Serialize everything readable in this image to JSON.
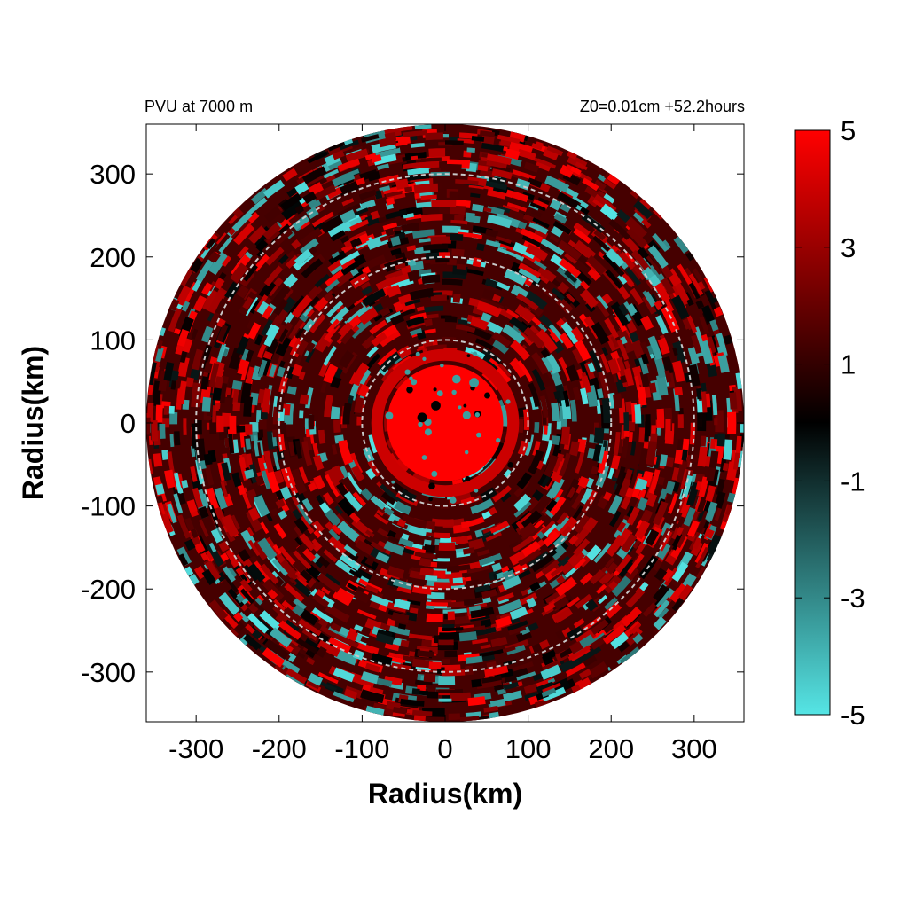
{
  "chart_data": {
    "type": "heatmap",
    "title_left": "PVU at  7000 m",
    "title_right": "Z0=0.01cm  +52.2hours",
    "xlabel": "Radius(km)",
    "ylabel": "Radius(km)",
    "xlim": [
      -360,
      360
    ],
    "ylim": [
      -360,
      360
    ],
    "x_ticks": [
      -300,
      -200,
      -100,
      0,
      100,
      200,
      300
    ],
    "y_ticks": [
      300,
      200,
      100,
      0,
      -100,
      -200,
      -300
    ],
    "x_tick_labels": [
      "-300",
      "-200",
      "-100",
      "0",
      "100",
      "200",
      "300"
    ],
    "y_tick_labels": [
      "300",
      "200",
      "100",
      "0",
      "-100",
      "-200",
      "-300"
    ],
    "domain_radius_km": 360,
    "reference_circle_radii_km": [
      100,
      200,
      300
    ],
    "core": {
      "radius_km": 70,
      "value_pvu": 5
    },
    "colorbar": {
      "range": [
        -5,
        5
      ],
      "ticks": [
        5,
        3,
        1,
        -1,
        -3,
        -5
      ],
      "tick_labels": [
        "5",
        "3",
        "1",
        "-1",
        "-3",
        "-5"
      ],
      "colors": {
        "max": "#ff0000",
        "zero": "#000000",
        "min": "#55e5e5"
      }
    }
  }
}
